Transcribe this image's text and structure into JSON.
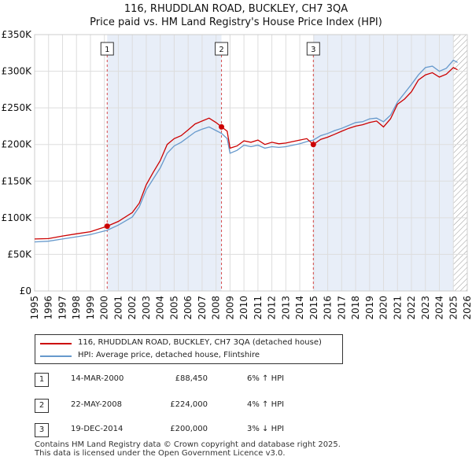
{
  "chart_data": {
    "type": "line",
    "title": "116, RHUDDLAN ROAD, BUCKLEY, CH7 3QA",
    "subtitle": "Price paid vs. HM Land Registry's House Price Index (HPI)",
    "xlim": [
      1995,
      2026
    ],
    "ylim": [
      0,
      350000
    ],
    "x_ticks": [
      1995,
      1996,
      1997,
      1998,
      1999,
      2000,
      2001,
      2002,
      2003,
      2004,
      2005,
      2006,
      2007,
      2008,
      2009,
      2010,
      2011,
      2012,
      2013,
      2014,
      2015,
      2016,
      2017,
      2018,
      2019,
      2020,
      2021,
      2022,
      2023,
      2024,
      2025,
      2026
    ],
    "y_ticks": [
      {
        "value": 0,
        "label": "£0"
      },
      {
        "value": 50000,
        "label": "£50K"
      },
      {
        "value": 100000,
        "label": "£100K"
      },
      {
        "value": 150000,
        "label": "£150K"
      },
      {
        "value": 200000,
        "label": "£200K"
      },
      {
        "value": 250000,
        "label": "£250K"
      },
      {
        "value": 300000,
        "label": "£300K"
      },
      {
        "value": 350000,
        "label": "£350K"
      }
    ],
    "colors": {
      "property": "#cc0000",
      "hpi": "#6699cc",
      "shade": "#e8eef8",
      "vline": "#cc0000",
      "grid": "#dddddd"
    },
    "series": [
      {
        "name": "116, RHUDDLAN ROAD, BUCKLEY, CH7 3QA (detached house)",
        "color": "#cc0000",
        "points": [
          [
            1995,
            71000
          ],
          [
            1996,
            71500
          ],
          [
            1997,
            75000
          ],
          [
            1998,
            78000
          ],
          [
            1999,
            81000
          ],
          [
            2000.2,
            88450
          ],
          [
            2001,
            95000
          ],
          [
            2002,
            107000
          ],
          [
            2002.5,
            120000
          ],
          [
            2003,
            145000
          ],
          [
            2003.5,
            162000
          ],
          [
            2004,
            178000
          ],
          [
            2004.5,
            200000
          ],
          [
            2005,
            208000
          ],
          [
            2005.5,
            212000
          ],
          [
            2006,
            220000
          ],
          [
            2006.5,
            228000
          ],
          [
            2007,
            232000
          ],
          [
            2007.5,
            236000
          ],
          [
            2008.0,
            230000
          ],
          [
            2008.4,
            224000
          ],
          [
            2008.8,
            218000
          ],
          [
            2009,
            195000
          ],
          [
            2009.5,
            198000
          ],
          [
            2010,
            205000
          ],
          [
            2010.5,
            203000
          ],
          [
            2011,
            206000
          ],
          [
            2011.5,
            200000
          ],
          [
            2012,
            203000
          ],
          [
            2012.5,
            201000
          ],
          [
            2013,
            202000
          ],
          [
            2013.5,
            204000
          ],
          [
            2014,
            206000
          ],
          [
            2014.5,
            208000
          ],
          [
            2014.97,
            200000
          ],
          [
            2015.5,
            207000
          ],
          [
            2016,
            210000
          ],
          [
            2016.5,
            214000
          ],
          [
            2017,
            218000
          ],
          [
            2017.5,
            222000
          ],
          [
            2018,
            225000
          ],
          [
            2018.5,
            227000
          ],
          [
            2019,
            230000
          ],
          [
            2019.5,
            232000
          ],
          [
            2020,
            224000
          ],
          [
            2020.5,
            235000
          ],
          [
            2021,
            255000
          ],
          [
            2021.5,
            262000
          ],
          [
            2022,
            272000
          ],
          [
            2022.5,
            288000
          ],
          [
            2023,
            295000
          ],
          [
            2023.5,
            298000
          ],
          [
            2024,
            292000
          ],
          [
            2024.5,
            296000
          ],
          [
            2025,
            305000
          ],
          [
            2025.3,
            302000
          ]
        ]
      },
      {
        "name": "HPI: Average price, detached house, Flintshire",
        "color": "#6699cc",
        "points": [
          [
            1995,
            67000
          ],
          [
            1996,
            68000
          ],
          [
            1997,
            71000
          ],
          [
            1998,
            74000
          ],
          [
            1999,
            77000
          ],
          [
            2000.2,
            83000
          ],
          [
            2001,
            90000
          ],
          [
            2002,
            101000
          ],
          [
            2002.5,
            115000
          ],
          [
            2003,
            138000
          ],
          [
            2003.5,
            153000
          ],
          [
            2004,
            168000
          ],
          [
            2004.5,
            188000
          ],
          [
            2005,
            198000
          ],
          [
            2005.5,
            203000
          ],
          [
            2006,
            210000
          ],
          [
            2006.5,
            217000
          ],
          [
            2007,
            221000
          ],
          [
            2007.5,
            224000
          ],
          [
            2008.0,
            219000
          ],
          [
            2008.4,
            215000
          ],
          [
            2008.8,
            208000
          ],
          [
            2009,
            188000
          ],
          [
            2009.5,
            192000
          ],
          [
            2010,
            199000
          ],
          [
            2010.5,
            197000
          ],
          [
            2011,
            199000
          ],
          [
            2011.5,
            195000
          ],
          [
            2012,
            197000
          ],
          [
            2012.5,
            196000
          ],
          [
            2013,
            197000
          ],
          [
            2013.5,
            199000
          ],
          [
            2014,
            201000
          ],
          [
            2014.5,
            204000
          ],
          [
            2014.97,
            206000
          ],
          [
            2015.5,
            212000
          ],
          [
            2016,
            215000
          ],
          [
            2016.5,
            219000
          ],
          [
            2017,
            222000
          ],
          [
            2017.5,
            226000
          ],
          [
            2018,
            230000
          ],
          [
            2018.5,
            231000
          ],
          [
            2019,
            235000
          ],
          [
            2019.5,
            236000
          ],
          [
            2020,
            231000
          ],
          [
            2020.5,
            240000
          ],
          [
            2021,
            258000
          ],
          [
            2021.5,
            270000
          ],
          [
            2022,
            282000
          ],
          [
            2022.5,
            295000
          ],
          [
            2023,
            305000
          ],
          [
            2023.5,
            307000
          ],
          [
            2024,
            300000
          ],
          [
            2024.5,
            304000
          ],
          [
            2025,
            315000
          ],
          [
            2025.3,
            312000
          ]
        ]
      }
    ],
    "markers": [
      {
        "label": "1",
        "x": 2000.2,
        "y": 88450
      },
      {
        "label": "2",
        "x": 2008.39,
        "y": 224000
      },
      {
        "label": "3",
        "x": 2014.97,
        "y": 200000
      }
    ],
    "hatch_from": 2025.0
  },
  "legend": {
    "property_label": "116, RHUDDLAN ROAD, BUCKLEY, CH7 3QA (detached house)",
    "hpi_label": "HPI: Average price, detached house, Flintshire"
  },
  "annotations": [
    {
      "num": "1",
      "date": "14-MAR-2000",
      "price": "£88,450",
      "hpi": "6% ↑ HPI"
    },
    {
      "num": "2",
      "date": "22-MAY-2008",
      "price": "£224,000",
      "hpi": "4% ↑ HPI"
    },
    {
      "num": "3",
      "date": "19-DEC-2014",
      "price": "£200,000",
      "hpi": "3% ↓ HPI"
    }
  ],
  "footer": {
    "line1": "Contains HM Land Registry data © Crown copyright and database right 2025.",
    "line2": "This data is licensed under the Open Government Licence v3.0."
  }
}
